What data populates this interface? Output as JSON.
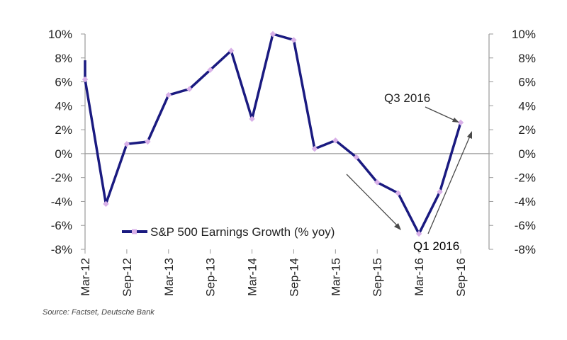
{
  "chart_data": {
    "type": "line",
    "title": "",
    "xlabel": "",
    "ylabel": "",
    "x": [
      "Mar-12",
      "Jun-12",
      "Sep-12",
      "Dec-12",
      "Mar-13",
      "Jun-13",
      "Sep-13",
      "Dec-13",
      "Mar-14",
      "Jun-14",
      "Sep-14",
      "Dec-14",
      "Mar-15",
      "Jun-15",
      "Sep-15",
      "Dec-15",
      "Mar-16",
      "Jun-16",
      "Sep-16"
    ],
    "x_tick_labels": [
      "Mar-12",
      "Sep-12",
      "Mar-13",
      "Sep-13",
      "Mar-14",
      "Sep-14",
      "Mar-15",
      "Sep-15",
      "Mar-16",
      "Sep-16"
    ],
    "series": [
      {
        "name": "S&P 500 Earnings Growth (% yoy)",
        "values": [
          6.2,
          -4.2,
          0.8,
          1.0,
          4.9,
          5.4,
          7.0,
          8.6,
          2.9,
          10.0,
          9.5,
          0.4,
          1.1,
          -0.3,
          -2.4,
          -3.3,
          -6.7,
          -3.2,
          2.6
        ]
      }
    ],
    "first_value_start": 7.8,
    "ylim": [
      -8,
      10
    ],
    "y_tick_labels_left": [
      "10%",
      "8%",
      "6%",
      "4%",
      "2%",
      "0%",
      "-2%",
      "-4%",
      "-6%",
      "-8%"
    ],
    "y_tick_labels_right": [
      "10%",
      "8%",
      "6%",
      "4%",
      "2%",
      "0%",
      "-2%",
      "-4%",
      "-6%",
      "-8%"
    ],
    "grid": false,
    "legend_position": "bottom-left",
    "annotations": [
      {
        "text": "Q3 2016",
        "points_to": "Sep-16"
      },
      {
        "text": "Q1 2016",
        "points_to": "Mar-16"
      }
    ],
    "source": "Source: Factset, Deutsche Bank",
    "colors": {
      "line": "#1a1a80",
      "marker": "#d8b0e8",
      "axis": "#9a9a9a",
      "arrow": "#4a4a4a"
    }
  }
}
